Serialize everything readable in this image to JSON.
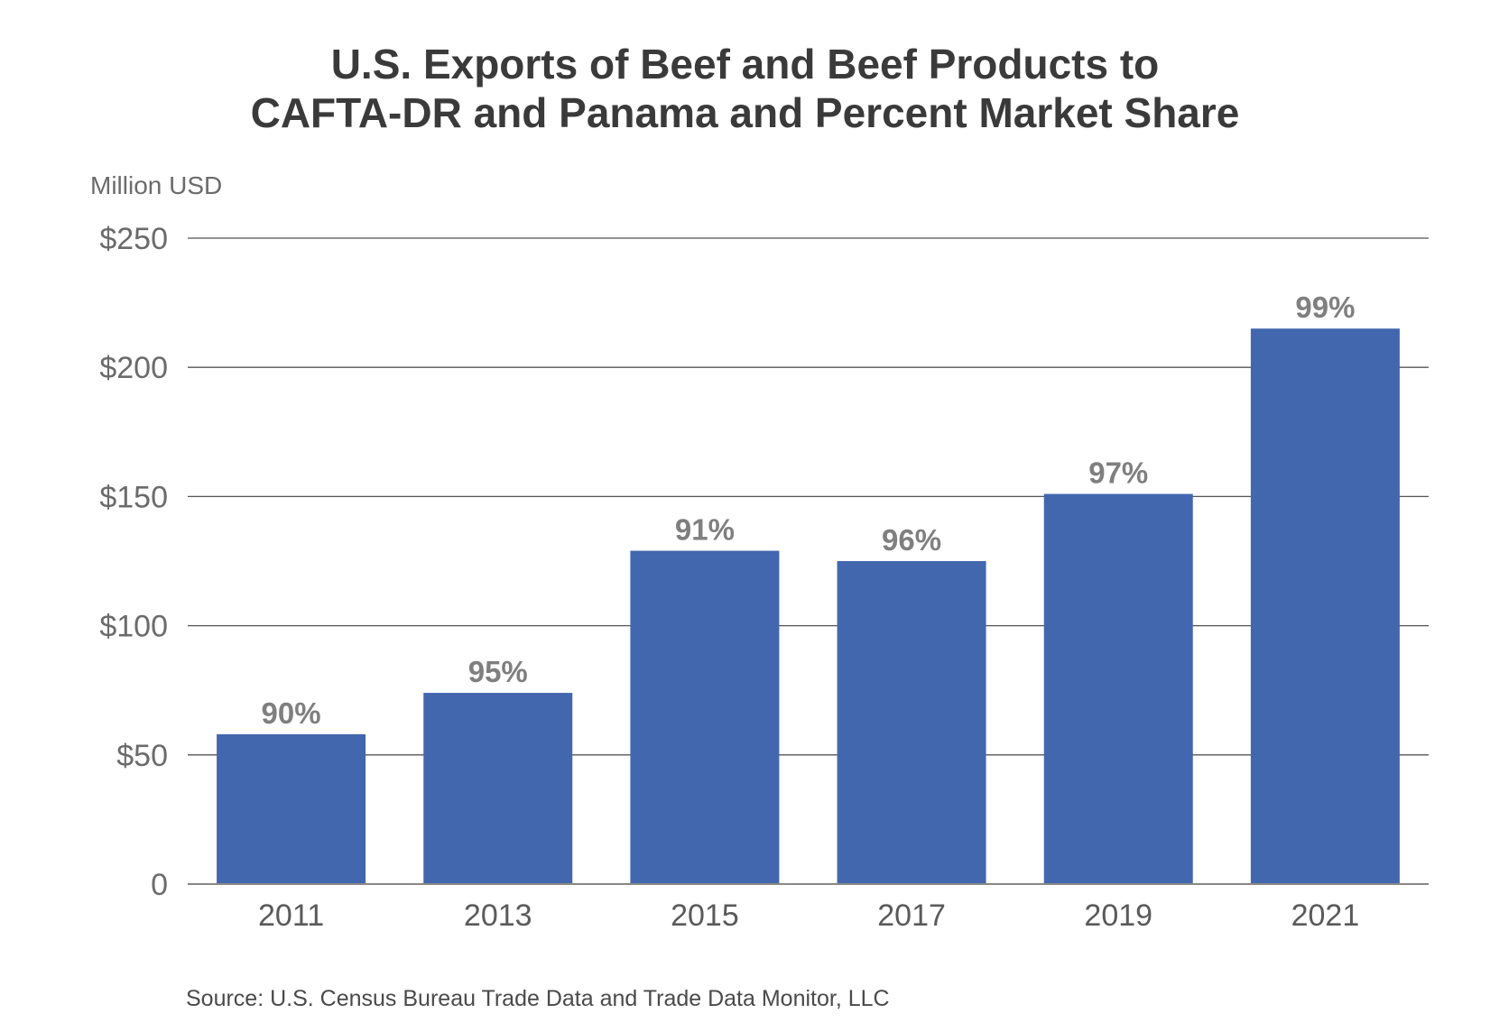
{
  "chart_data": {
    "type": "bar",
    "title": [
      "U.S. Exports of Beef and Beef Products to",
      "CAFTA-DR and Panama and Percent Market Share"
    ],
    "ylabel": "Million USD",
    "xlabel": "",
    "categories": [
      "2011",
      "2013",
      "2015",
      "2017",
      "2019",
      "2021"
    ],
    "values": [
      58,
      74,
      129,
      125,
      151,
      215
    ],
    "data_labels": [
      "90%",
      "95%",
      "91%",
      "96%",
      "97%",
      "99%"
    ],
    "ylim": [
      0,
      250
    ],
    "yticks": [
      0,
      50,
      100,
      150,
      200,
      250
    ],
    "ytick_labels": [
      "0",
      "$50",
      "$100",
      "$150",
      "$200",
      "$250"
    ],
    "grid": true,
    "bar_color": "#4267ae",
    "source": "Source: U.S. Census Bureau Trade Data and Trade Data Monitor, LLC"
  }
}
